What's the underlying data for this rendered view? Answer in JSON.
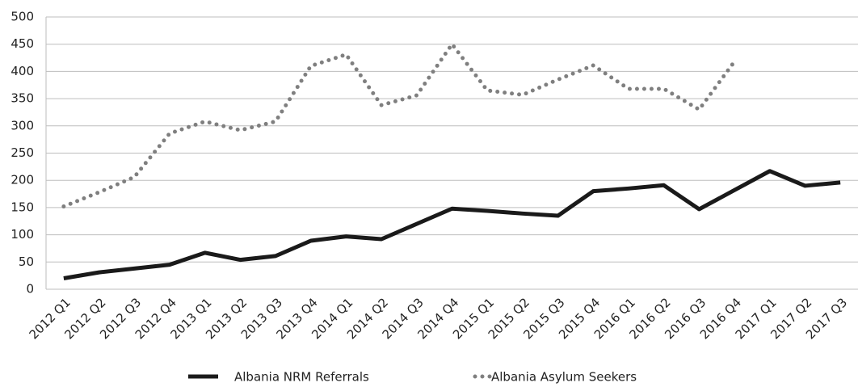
{
  "chart_data": {
    "type": "line",
    "categories": [
      "2012 Q1",
      "2012 Q2",
      "2012 Q3",
      "2012 Q4",
      "2013 Q1",
      "2013 Q2",
      "2013 Q3",
      "2013 Q4",
      "2014 Q1",
      "2014 Q2",
      "2014 Q3",
      "2014 Q4",
      "2015 Q1",
      "2015 Q2",
      "2015 Q3",
      "2015 Q4",
      "2016 Q1",
      "2016 Q2",
      "2016 Q3",
      "2016 Q4",
      "2017 Q1",
      "2017 Q2",
      "2017 Q3"
    ],
    "series": [
      {
        "name": "Albania NRM Referrals",
        "color": "#1a1a1a",
        "dash": "solid",
        "values": [
          20,
          31,
          38,
          45,
          67,
          54,
          61,
          89,
          97,
          92,
          120,
          148,
          144,
          139,
          135,
          180,
          185,
          191,
          147,
          182,
          217,
          190,
          196
        ]
      },
      {
        "name": "Albania Asylum Seekers",
        "color": "#7f7f7f",
        "dash": "dotted",
        "values": [
          152,
          178,
          206,
          286,
          308,
          292,
          308,
          410,
          431,
          338,
          356,
          450,
          365,
          357,
          385,
          411,
          368,
          368,
          330,
          418,
          null,
          null,
          null
        ]
      }
    ],
    "ylim": [
      0,
      500
    ],
    "yticks": [
      0,
      50,
      100,
      150,
      200,
      250,
      300,
      350,
      400,
      450,
      500
    ],
    "grid": true
  }
}
